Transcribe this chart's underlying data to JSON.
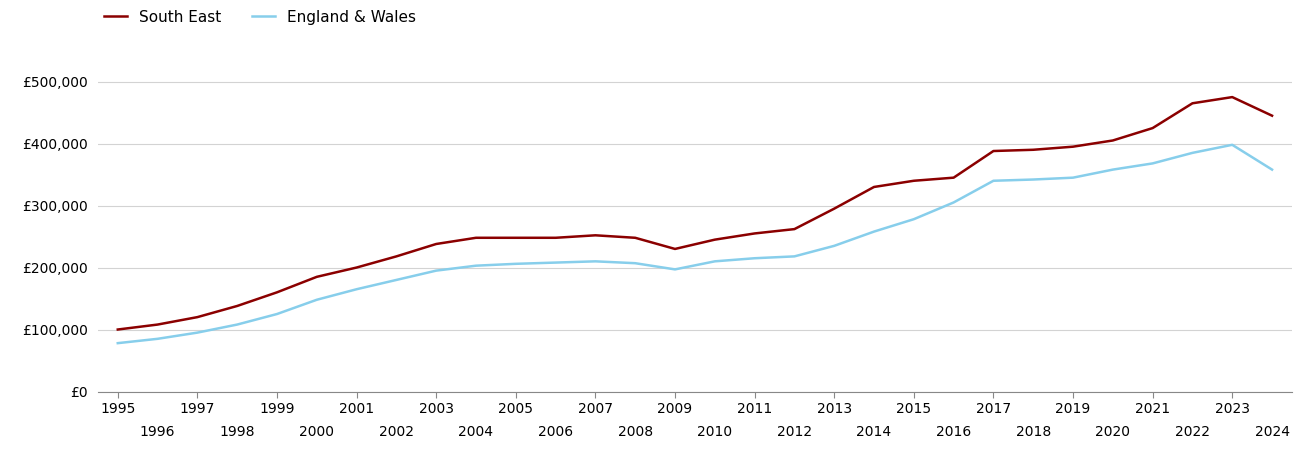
{
  "south_east": {
    "years": [
      1995,
      1996,
      1997,
      1998,
      1999,
      2000,
      2001,
      2002,
      2003,
      2004,
      2005,
      2006,
      2007,
      2008,
      2009,
      2010,
      2011,
      2012,
      2013,
      2014,
      2015,
      2016,
      2017,
      2018,
      2019,
      2020,
      2021,
      2022,
      2023,
      2024
    ],
    "values": [
      100000,
      108000,
      120000,
      138000,
      160000,
      185000,
      200000,
      218000,
      238000,
      248000,
      248000,
      248000,
      252000,
      248000,
      230000,
      245000,
      255000,
      262000,
      295000,
      330000,
      340000,
      345000,
      388000,
      390000,
      395000,
      405000,
      425000,
      465000,
      475000,
      445000
    ]
  },
  "england_wales": {
    "years": [
      1995,
      1996,
      1997,
      1998,
      1999,
      2000,
      2001,
      2002,
      2003,
      2004,
      2005,
      2006,
      2007,
      2008,
      2009,
      2010,
      2011,
      2012,
      2013,
      2014,
      2015,
      2016,
      2017,
      2018,
      2019,
      2020,
      2021,
      2022,
      2023,
      2024
    ],
    "values": [
      78000,
      85000,
      95000,
      108000,
      125000,
      148000,
      165000,
      180000,
      195000,
      203000,
      206000,
      208000,
      210000,
      207000,
      197000,
      210000,
      215000,
      218000,
      235000,
      258000,
      278000,
      305000,
      340000,
      342000,
      345000,
      358000,
      368000,
      385000,
      398000,
      358000
    ]
  },
  "south_east_color": "#8B0000",
  "england_wales_color": "#87CEEB",
  "south_east_label": "South East",
  "england_wales_label": "England & Wales",
  "ylim": [
    0,
    530000
  ],
  "yticks": [
    0,
    100000,
    200000,
    300000,
    400000,
    500000
  ],
  "ytick_labels": [
    "£0",
    "£100,000",
    "£200,000",
    "£300,000",
    "£400,000",
    "£500,000"
  ],
  "xlim_min": 1994.5,
  "xlim_max": 2024.5,
  "bg_color": "#ffffff",
  "grid_color": "#d3d3d3",
  "line_width": 1.8,
  "legend_fontsize": 11,
  "tick_fontsize": 10
}
